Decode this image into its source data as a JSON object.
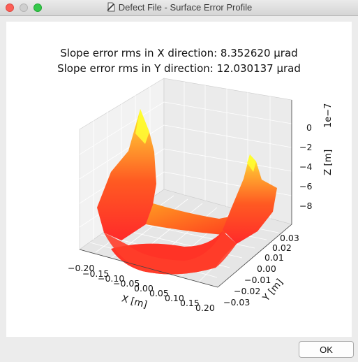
{
  "window": {
    "title": "Defect File - Surface Error Profile"
  },
  "plot": {
    "title_x": "Slope error rms in X direction: 8.352620 μrad",
    "title_y": "Slope error rms in Y direction: 12.030137 μrad"
  },
  "chart_data": {
    "type": "surface3d",
    "title": "Slope error rms in X direction: 8.352620 μrad\nSlope error rms in Y direction: 12.030137 μrad",
    "xlabel": "X [m]",
    "ylabel": "Y [m]",
    "zlabel": "Z [m]",
    "z_offset_label": "1e−7",
    "x_ticks": [
      "−0.20",
      "−0.15",
      "−0.10",
      "−0.05",
      "0.00",
      "0.05",
      "0.10",
      "0.15",
      "0.20"
    ],
    "y_ticks": [
      "−0.03",
      "−0.02",
      "−0.01",
      "0.00",
      "0.01",
      "0.02",
      "0.03"
    ],
    "z_ticks": [
      "0",
      "−2",
      "−4",
      "−6",
      "−8"
    ],
    "xlim": [
      -0.2,
      0.2
    ],
    "ylim": [
      -0.03,
      0.03
    ],
    "zlim": [
      -9e-07,
      1.5e-07
    ],
    "colormap": "autumn",
    "colors": {
      "low": "#ff2a2a",
      "high": "#ffff22"
    }
  },
  "buttons": {
    "ok": "OK"
  }
}
